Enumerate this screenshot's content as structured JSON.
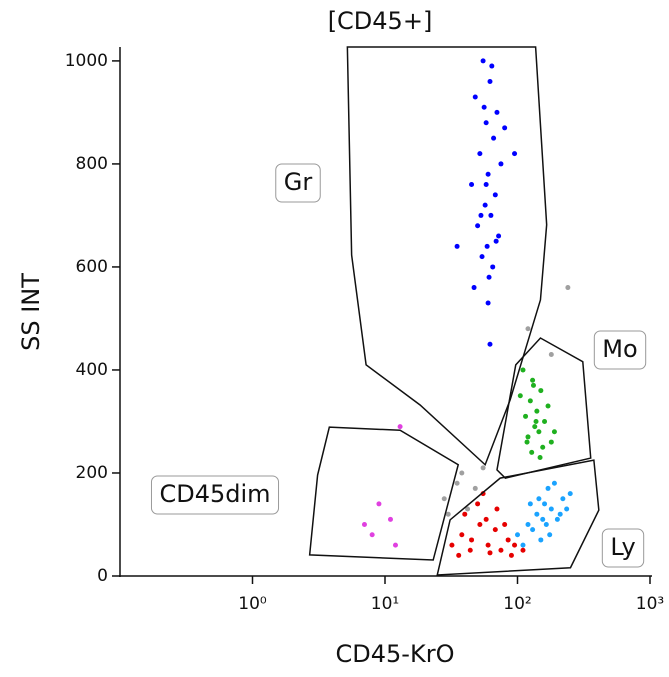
{
  "chart_data": {
    "type": "scatter",
    "title": "[CD45+]",
    "x_label": "CD45-KrO",
    "y_label": "SS INT",
    "x_scale": "log",
    "xlim": [
      0.1,
      1000
    ],
    "ylim": [
      0,
      1027
    ],
    "xticks": [
      {
        "value": 1,
        "label": "10⁰"
      },
      {
        "value": 10,
        "label": "10¹"
      },
      {
        "value": 100,
        "label": "10²"
      },
      {
        "value": 1000,
        "label": "10³"
      }
    ],
    "yticks": [
      0,
      200,
      400,
      600,
      800,
      1000
    ],
    "series": [
      {
        "color": "#0000ff",
        "x": [
          55,
          62,
          48,
          70,
          58,
          66,
          52,
          75,
          60,
          45,
          68,
          57,
          63,
          50,
          72,
          59,
          54,
          65,
          61,
          47,
          80,
          56,
          64,
          53,
          69,
          58,
          35,
          95,
          60,
          62
        ],
        "y": [
          1000,
          960,
          930,
          900,
          880,
          850,
          820,
          800,
          780,
          760,
          740,
          720,
          700,
          680,
          660,
          640,
          620,
          600,
          580,
          560,
          870,
          910,
          990,
          700,
          650,
          760,
          640,
          820,
          530,
          450
        ]
      },
      {
        "color": "#1fb01f",
        "x": [
          110,
          130,
          150,
          125,
          170,
          140,
          115,
          160,
          135,
          145,
          120,
          180,
          155,
          128,
          138,
          105,
          190,
          148,
          132,
          118
        ],
        "y": [
          400,
          380,
          360,
          340,
          330,
          320,
          310,
          300,
          290,
          280,
          270,
          260,
          250,
          240,
          300,
          350,
          280,
          230,
          370,
          260
        ]
      },
      {
        "color": "#e60000",
        "x": [
          32,
          38,
          45,
          52,
          60,
          68,
          75,
          85,
          95,
          110,
          40,
          50,
          58,
          70,
          80,
          36,
          44,
          62,
          90,
          55
        ],
        "y": [
          60,
          80,
          70,
          100,
          60,
          90,
          50,
          70,
          60,
          50,
          120,
          140,
          110,
          130,
          100,
          40,
          50,
          45,
          40,
          160
        ]
      },
      {
        "color": "#1aa3ff",
        "x": [
          100,
          120,
          140,
          160,
          180,
          200,
          220,
          250,
          130,
          150,
          170,
          190,
          110,
          145,
          165,
          210,
          235,
          125,
          175,
          155
        ],
        "y": [
          80,
          100,
          120,
          140,
          130,
          110,
          150,
          160,
          90,
          70,
          170,
          180,
          60,
          150,
          100,
          120,
          130,
          140,
          80,
          110
        ]
      },
      {
        "color": "#e040e0",
        "x": [
          7,
          9,
          11,
          8,
          12,
          13
        ],
        "y": [
          100,
          140,
          110,
          80,
          60,
          290
        ]
      },
      {
        "color": "#a0a0a0",
        "x": [
          28,
          35,
          42,
          38,
          48,
          55,
          30,
          120,
          180,
          240
        ],
        "y": [
          150,
          180,
          130,
          200,
          170,
          210,
          120,
          480,
          430,
          560
        ]
      }
    ],
    "gates": [
      {
        "name": "Gr",
        "x": [
          5.2,
          5.6,
          7.2,
          18.4,
          57,
          88,
          149,
          166,
          137
        ],
        "y": [
          1027,
          623,
          410,
          332,
          216,
          342,
          536,
          682,
          1027
        ]
      },
      {
        "name": "Mo",
        "x": [
          70,
          97,
          149,
          311,
          357,
          81
        ],
        "y": [
          206,
          410,
          462,
          416,
          229,
          190
        ]
      },
      {
        "name": "CD45dim",
        "x": [
          3.8,
          13,
          35.7,
          23.1,
          2.7,
          3.1
        ],
        "y": [
          289,
          283,
          216,
          31,
          41,
          196
        ]
      },
      {
        "name": "Ly",
        "x": [
          24.8,
          31,
          74,
          377,
          411,
          251
        ],
        "y": [
          2,
          109,
          190,
          225,
          128,
          16
        ]
      }
    ]
  }
}
